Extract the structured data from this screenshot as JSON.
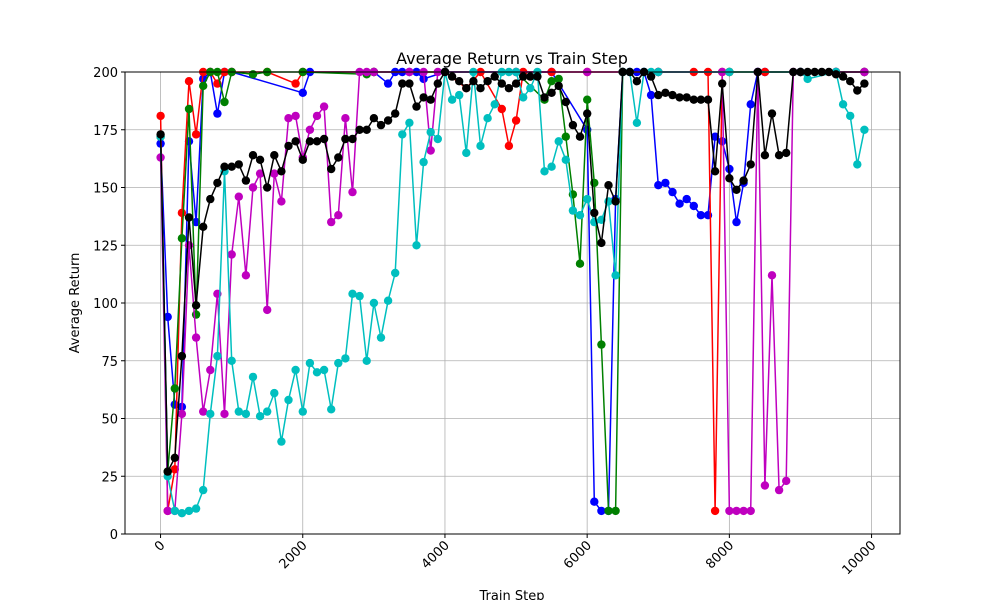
{
  "chart_data": {
    "type": "line",
    "title": "Average Return vs Train Step",
    "xlabel": "Train Step",
    "ylabel": "Average Return",
    "xlim": [
      -500,
      10400
    ],
    "ylim": [
      0,
      200
    ],
    "xticks": [
      0,
      2000,
      4000,
      6000,
      8000,
      10000
    ],
    "yticks": [
      0,
      25,
      50,
      75,
      100,
      125,
      150,
      175,
      200
    ],
    "grid": true,
    "legend": "none",
    "series": [
      {
        "color": "#0000ff",
        "x": [
          0,
          100,
          200,
          300,
          400,
          500,
          600,
          700,
          800,
          900,
          1000,
          2000,
          2100,
          3000,
          3200,
          3300,
          3400,
          3500,
          3600,
          3700,
          4000,
          5500,
          6000,
          6100,
          6200,
          6300,
          6400,
          6500,
          6600,
          6700,
          6800,
          6900,
          7000,
          7100,
          7200,
          7300,
          7400,
          7500,
          7600,
          7700,
          7800,
          7900,
          8000,
          8100,
          8200,
          8300,
          8400,
          8500,
          9000,
          9500,
          9900
        ],
        "y": [
          169,
          94,
          56,
          55,
          170,
          135,
          197,
          200,
          182,
          200,
          200,
          191,
          200,
          200,
          195,
          200,
          200,
          200,
          200,
          197,
          200,
          200,
          175,
          14,
          10,
          10,
          145,
          200,
          200,
          200,
          200,
          190,
          151,
          152,
          148,
          143,
          145,
          142,
          138,
          138,
          172,
          170,
          158,
          135,
          152,
          186,
          200,
          200,
          200,
          200,
          200
        ]
      },
      {
        "color": "#ff0000",
        "x": [
          0,
          100,
          200,
          300,
          400,
          500,
          600,
          700,
          800,
          900,
          1000,
          1500,
          1900,
          2000,
          3000,
          4000,
          4300,
          4500,
          4800,
          4900,
          5000,
          5100,
          5500,
          6000,
          6500,
          7000,
          7500,
          7700,
          7800,
          7900,
          8000,
          8500,
          9000,
          9500,
          9900
        ],
        "y": [
          181,
          10,
          28,
          139,
          196,
          173,
          200,
          200,
          195,
          200,
          200,
          200,
          195,
          200,
          200,
          200,
          193,
          200,
          184,
          168,
          179,
          200,
          200,
          200,
          200,
          200,
          200,
          200,
          10,
          200,
          200,
          200,
          200,
          200,
          200
        ]
      },
      {
        "color": "#008000",
        "x": [
          0,
          100,
          200,
          300,
          400,
          500,
          600,
          700,
          800,
          900,
          1000,
          1300,
          1500,
          2000,
          2900,
          3000,
          4000,
          5000,
          5400,
          5500,
          5600,
          5700,
          5800,
          5900,
          6000,
          6100,
          6200,
          6300,
          6400,
          6500,
          7000,
          8000,
          9000,
          9500,
          9900
        ],
        "y": [
          172,
          27,
          63,
          128,
          184,
          95,
          194,
          200,
          200,
          187,
          200,
          199,
          200,
          200,
          199,
          200,
          200,
          200,
          188,
          196,
          197,
          172,
          147,
          117,
          188,
          152,
          82,
          10,
          10,
          200,
          200,
          200,
          200,
          200,
          200
        ]
      },
      {
        "color": "#bf00bf",
        "x": [
          0,
          100,
          200,
          300,
          400,
          500,
          600,
          700,
          800,
          900,
          1000,
          1100,
          1200,
          1300,
          1400,
          1500,
          1600,
          1700,
          1800,
          1900,
          2000,
          2100,
          2200,
          2300,
          2400,
          2500,
          2600,
          2700,
          2800,
          2900,
          3000,
          3500,
          3700,
          3800,
          3900,
          4000,
          5000,
          6000,
          7000,
          7900,
          8000,
          8100,
          8200,
          8300,
          8400,
          8500,
          8600,
          8700,
          8800,
          8900,
          9000,
          9500,
          9900
        ],
        "y": [
          163,
          10,
          10,
          52,
          125,
          85,
          53,
          71,
          104,
          52,
          121,
          146,
          112,
          150,
          156,
          97,
          156,
          144,
          180,
          181,
          163,
          175,
          181,
          185,
          135,
          138,
          180,
          148,
          200,
          200,
          200,
          200,
          200,
          166,
          200,
          200,
          200,
          200,
          200,
          200,
          10,
          10,
          10,
          10,
          200,
          21,
          112,
          19,
          23,
          200,
          200,
          200,
          200
        ]
      },
      {
        "color": "#00bfbf",
        "x": [
          0,
          100,
          200,
          300,
          400,
          500,
          600,
          700,
          800,
          900,
          1000,
          1100,
          1200,
          1300,
          1400,
          1500,
          1600,
          1700,
          1800,
          1900,
          2000,
          2100,
          2200,
          2300,
          2400,
          2500,
          2600,
          2700,
          2800,
          2900,
          3000,
          3100,
          3200,
          3300,
          3400,
          3500,
          3600,
          3700,
          3800,
          3900,
          4000,
          4100,
          4200,
          4300,
          4400,
          4500,
          4600,
          4700,
          4800,
          4900,
          5000,
          5100,
          5200,
          5300,
          5400,
          5500,
          5600,
          5700,
          5800,
          5900,
          6000,
          6100,
          6200,
          6300,
          6400,
          6500,
          6600,
          6700,
          6800,
          6900,
          7000,
          8000,
          9000,
          9100,
          9500,
          9600,
          9700,
          9800,
          9900
        ],
        "y": [
          172,
          25,
          10,
          9,
          10,
          11,
          19,
          52,
          77,
          157,
          75,
          53,
          52,
          68,
          51,
          53,
          61,
          40,
          58,
          71,
          53,
          74,
          70,
          71,
          54,
          74,
          76,
          104,
          103,
          75,
          100,
          85,
          101,
          113,
          173,
          178,
          125,
          161,
          174,
          171,
          200,
          188,
          190,
          165,
          200,
          168,
          180,
          186,
          200,
          200,
          200,
          189,
          193,
          200,
          157,
          159,
          170,
          162,
          140,
          138,
          145,
          135,
          136,
          144,
          112,
          200,
          200,
          178,
          200,
          200,
          200,
          200,
          200,
          197,
          200,
          186,
          181,
          160,
          175
        ]
      },
      {
        "color": "#000000",
        "x": [
          0,
          100,
          200,
          300,
          400,
          500,
          600,
          700,
          800,
          900,
          1000,
          1100,
          1200,
          1300,
          1400,
          1500,
          1600,
          1700,
          1800,
          1900,
          2000,
          2100,
          2200,
          2300,
          2400,
          2500,
          2600,
          2700,
          2800,
          2900,
          3000,
          3100,
          3200,
          3300,
          3400,
          3500,
          3600,
          3700,
          3800,
          3900,
          4000,
          4100,
          4200,
          4300,
          4400,
          4500,
          4600,
          4700,
          4800,
          4900,
          5000,
          5100,
          5200,
          5300,
          5400,
          5500,
          5600,
          5700,
          5800,
          5900,
          6000,
          6100,
          6200,
          6300,
          6400,
          6500,
          6600,
          6700,
          6800,
          6900,
          7000,
          7100,
          7200,
          7300,
          7400,
          7500,
          7600,
          7700,
          7800,
          7900,
          8000,
          8100,
          8200,
          8300,
          8400,
          8500,
          8600,
          8700,
          8800,
          8900,
          9000,
          9100,
          9200,
          9300,
          9400,
          9500,
          9600,
          9700,
          9800,
          9900
        ],
        "y": [
          173,
          27,
          33,
          77,
          137,
          99,
          133,
          145,
          152,
          159,
          159,
          160,
          153,
          164,
          162,
          150,
          164,
          157,
          168,
          170,
          162,
          170,
          170,
          171,
          158,
          163,
          171,
          171,
          175,
          175,
          180,
          177,
          179,
          182,
          195,
          195,
          185,
          189,
          188,
          195,
          200,
          198,
          196,
          193,
          196,
          193,
          196,
          198,
          195,
          193,
          195,
          198,
          198,
          198,
          189,
          191,
          194,
          187,
          177,
          172,
          182,
          139,
          126,
          151,
          144,
          200,
          200,
          196,
          200,
          198,
          190,
          191,
          190,
          189,
          189,
          188,
          188,
          188,
          157,
          195,
          154,
          149,
          153,
          160,
          200,
          164,
          182,
          164,
          165,
          200,
          200,
          200,
          200,
          200,
          200,
          199,
          198,
          196,
          192,
          195
        ]
      }
    ]
  }
}
